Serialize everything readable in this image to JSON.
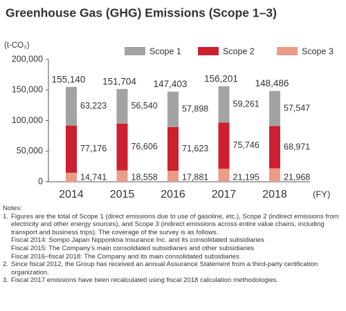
{
  "chart_data": {
    "type": "stacked-bar",
    "title": "Greenhouse Gas (GHG) Emissions (Scope 1–3)",
    "y_label": "(t-CO₂)",
    "x_label": "(FY)",
    "categories": [
      "2014",
      "2015",
      "2016",
      "2017",
      "2018"
    ],
    "series": [
      {
        "name": "Scope 1",
        "color": "#a3a3a3",
        "values": [
          63223,
          56540,
          57898,
          59261,
          57547
        ],
        "value_labels": [
          "63,223",
          "56,540",
          "57,898",
          "59,261",
          "57,547"
        ]
      },
      {
        "name": "Scope 2",
        "color": "#cc1f2f",
        "values": [
          77176,
          76606,
          71623,
          75746,
          68971
        ],
        "value_labels": [
          "77,176",
          "76,606",
          "71,623",
          "75,746",
          "68,971"
        ]
      },
      {
        "name": "Scope 3",
        "color": "#e99c87",
        "values": [
          14741,
          18558,
          17881,
          21195,
          21968
        ],
        "value_labels": [
          "14,741",
          "18,558",
          "17,881",
          "21,195",
          "21,968"
        ]
      }
    ],
    "totals": {
      "values": [
        155140,
        151704,
        147403,
        156201,
        148486
      ],
      "value_labels": [
        "155,140",
        "151,704",
        "147,403",
        "156,201",
        "148,486"
      ]
    },
    "ylim": [
      0,
      200000
    ],
    "yticks": [
      0,
      {
        "value": 50000,
        "label": "50,000"
      },
      {
        "value": 100000,
        "label": "100,000"
      },
      {
        "value": 150000,
        "label": "150,000"
      },
      {
        "value": 200000,
        "label": "200,000"
      }
    ],
    "grid": false,
    "legend": "top"
  },
  "notes": {
    "heading": "Notes:",
    "items": [
      {
        "number": "1.",
        "text": "Figures are the total of Scope 1 (direct emissions due to use of gasoline, etc.), Scope 2 (indirect emissions from electricity and other energy sources), and Scope 3 (indirect emissions across entire value chains, including transport and business trips). The coverage of the survey is as follows.",
        "details": [
          "Fiscal 2014: Sompo Japan Nipponkoa Insurance Inc. and its consolidated subsidiaries",
          "Fiscal 2015: The Company’s main consolidated subsidiaries and other subsidiaries",
          "Fiscal 2016–fiscal 2018: The Company and its main consolidated subsidiaries"
        ]
      },
      {
        "number": "2.",
        "text": "Since fiscal 2012, the Group has received an annual Assurance Statement from a third-party certification organization.",
        "details": []
      },
      {
        "number": "3.",
        "text": "Fiscal 2017 emissions have been recalculated using fiscal 2018 calculation methodologies.",
        "details": []
      }
    ]
  }
}
